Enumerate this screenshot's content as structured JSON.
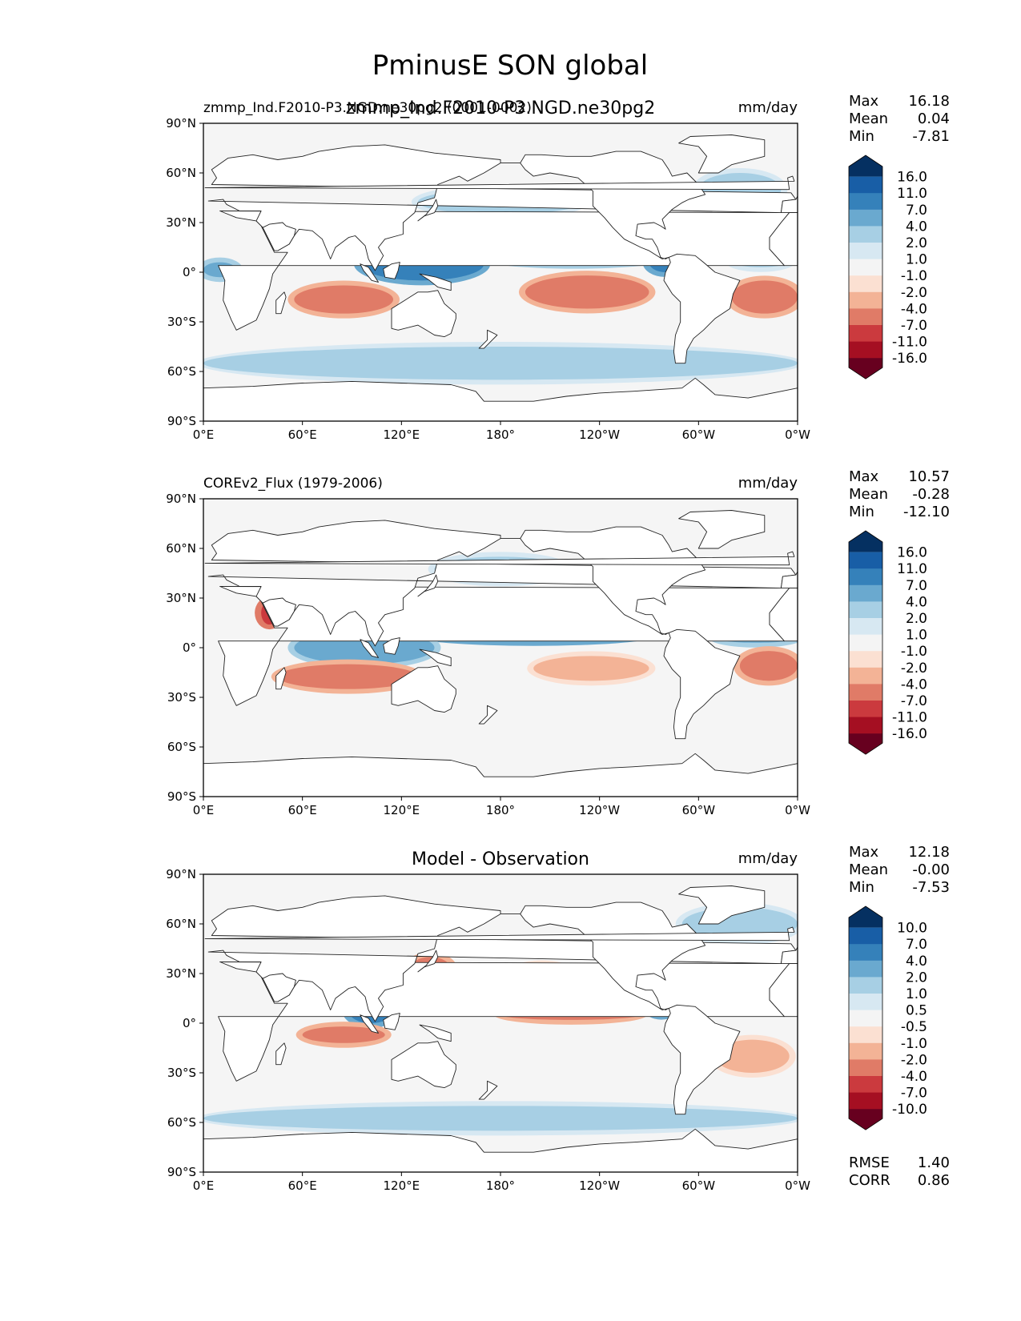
{
  "figure_title": "PminusE SON global",
  "palette": {
    "colorbar_13": [
      "#67001f",
      "#a50f22",
      "#cb3a3e",
      "#e07b67",
      "#f3b396",
      "#fbe0d2",
      "#f4f4f4",
      "#d7e8f2",
      "#a7cfe4",
      "#6aa9cf",
      "#3581ba",
      "#185ea6",
      "#053061"
    ],
    "land": "#ffffff",
    "ocean_default": "#f5f5f5",
    "frame": "#000000"
  },
  "x_ticks": [
    "0°E",
    "60°E",
    "120°E",
    "180°",
    "120°W",
    "60°W",
    "0°W"
  ],
  "y_ticks": [
    "90°N",
    "60°N",
    "30°N",
    "0°",
    "30°S",
    "60°S",
    "90°S"
  ],
  "panels": [
    {
      "id": "test",
      "left_title": "zmmp_Ind.F2010-P3.NGD.ne30pg2 (0001-0002)",
      "center_title": "zmmp_Ind.F2010-P3.NGD.ne30pg2",
      "units": "mm/day",
      "stats": [
        {
          "label": "Max",
          "value": "16.18"
        },
        {
          "label": "Mean",
          "value": "0.04"
        },
        {
          "label": "Min",
          "value": "-7.81"
        }
      ],
      "colorbar_labels": [
        "16.0",
        "11.0",
        "7.0",
        "4.0",
        "2.0",
        "1.0",
        "-1.0",
        "-2.0",
        "-4.0",
        "-7.0",
        "-11.0",
        "-16.0"
      ],
      "extra_stats": []
    },
    {
      "id": "reference",
      "left_title": "COREv2_Flux (1979-2006)",
      "center_title": "",
      "units": "mm/day",
      "stats": [
        {
          "label": "Max",
          "value": "10.57"
        },
        {
          "label": "Mean",
          "value": "-0.28"
        },
        {
          "label": "Min",
          "value": "-12.10"
        }
      ],
      "colorbar_labels": [
        "16.0",
        "11.0",
        "7.0",
        "4.0",
        "2.0",
        "1.0",
        "-1.0",
        "-2.0",
        "-4.0",
        "-7.0",
        "-11.0",
        "-16.0"
      ],
      "extra_stats": []
    },
    {
      "id": "difference",
      "left_title": "",
      "center_title": "Model - Observation",
      "units": "mm/day",
      "stats": [
        {
          "label": "Max",
          "value": "12.18"
        },
        {
          "label": "Mean",
          "value": "-0.00"
        },
        {
          "label": "Min",
          "value": "-7.53"
        }
      ],
      "colorbar_labels": [
        "10.0",
        "7.0",
        "4.0",
        "2.0",
        "1.0",
        "0.5",
        "-0.5",
        "-1.0",
        "-2.0",
        "-4.0",
        "-7.0",
        "-10.0"
      ],
      "extra_stats": [
        {
          "label": "RMSE",
          "value": "1.40"
        },
        {
          "label": "CORR",
          "value": "0.86"
        }
      ]
    }
  ],
  "chart_data": [
    {
      "type": "heatmap",
      "title": "zmmp_Ind.F2010-P3.NGD.ne30pg2",
      "units": "mm/day",
      "x_range_lon": [
        0,
        360
      ],
      "y_range_lat": [
        -90,
        90
      ],
      "levels": [
        -16,
        -11,
        -7,
        -4,
        -2,
        -1,
        1,
        2,
        4,
        7,
        11,
        16
      ],
      "features": [
        {
          "name": "ITCZ west Pacific / maritime continent",
          "lon": [
            95,
            170
          ],
          "lat": [
            -5,
            15
          ],
          "value": 9
        },
        {
          "name": "Pacific ITCZ",
          "lon": [
            170,
            280
          ],
          "lat": [
            5,
            12
          ],
          "value": 6
        },
        {
          "name": "Central America / Colombia",
          "lon": [
            270,
            290
          ],
          "lat": [
            0,
            12
          ],
          "value": 10
        },
        {
          "name": "Atlantic ITCZ",
          "lon": [
            320,
            355
          ],
          "lat": [
            3,
            10
          ],
          "value": 3
        },
        {
          "name": "Gulf of Guinea",
          "lon": [
            0,
            20
          ],
          "lat": [
            -3,
            6
          ],
          "value": 6
        },
        {
          "name": "North Pacific storm track",
          "lon": [
            130,
            230
          ],
          "lat": [
            35,
            50
          ],
          "value": 3
        },
        {
          "name": "North Atlantic storm track",
          "lon": [
            300,
            350
          ],
          "lat": [
            40,
            60
          ],
          "value": 2
        },
        {
          "name": "Southern Ocean",
          "lon": [
            0,
            360
          ],
          "lat": [
            -65,
            -45
          ],
          "value": 2
        },
        {
          "name": "SE Pacific subtropics",
          "lon": [
            195,
            270
          ],
          "lat": [
            -22,
            -2
          ],
          "value": -5
        },
        {
          "name": "South Indian Ocean",
          "lon": [
            55,
            115
          ],
          "lat": [
            -25,
            -8
          ],
          "value": -5
        },
        {
          "name": "NE Pacific subtropics",
          "lon": [
            180,
            235
          ],
          "lat": [
            15,
            30
          ],
          "value": -4
        },
        {
          "name": "South Atlantic",
          "lon": [
            320,
            360
          ],
          "lat": [
            -25,
            -5
          ],
          "value": -5
        },
        {
          "name": "North Atlantic subtropics",
          "lon": [
            280,
            340
          ],
          "lat": [
            15,
            30
          ],
          "value": -3
        },
        {
          "name": "Arabian Sea",
          "lon": [
            55,
            75
          ],
          "lat": [
            10,
            25
          ],
          "value": -3
        }
      ]
    },
    {
      "type": "heatmap",
      "title": "COREv2_Flux (1979-2006)",
      "units": "mm/day",
      "x_range_lon": [
        0,
        360
      ],
      "y_range_lat": [
        -90,
        90
      ],
      "levels": [
        -16,
        -11,
        -7,
        -4,
        -2,
        -1,
        1,
        2,
        4,
        7,
        11,
        16
      ],
      "features": [
        {
          "name": "Pacific ITCZ",
          "lon": [
            130,
            270
          ],
          "lat": [
            4,
            10
          ],
          "value": 7
        },
        {
          "name": "Indian Ocean / maritime continent",
          "lon": [
            55,
            140
          ],
          "lat": [
            -10,
            10
          ],
          "value": 5
        },
        {
          "name": "Atlantic ITCZ",
          "lon": [
            310,
            360
          ],
          "lat": [
            3,
            9
          ],
          "value": 4
        },
        {
          "name": "Kuroshio / NW Pacific",
          "lon": [
            140,
            220
          ],
          "lat": [
            40,
            55
          ],
          "value": 3
        },
        {
          "name": "South Indian Ocean",
          "lon": [
            45,
            130
          ],
          "lat": [
            -25,
            -10
          ],
          "value": -5
        },
        {
          "name": "SE Pacific",
          "lon": [
            200,
            270
          ],
          "lat": [
            -20,
            -5
          ],
          "value": -4
        },
        {
          "name": "South Atlantic",
          "lon": [
            325,
            360
          ],
          "lat": [
            -20,
            -2
          ],
          "value": -5
        },
        {
          "name": "North Pacific subtropics",
          "lon": [
            155,
            230
          ],
          "lat": [
            15,
            30
          ],
          "value": -3
        },
        {
          "name": "Red Sea",
          "lon": [
            35,
            45
          ],
          "lat": [
            14,
            28
          ],
          "value": -9
        },
        {
          "name": "North Atlantic subtropics",
          "lon": [
            280,
            345
          ],
          "lat": [
            15,
            30
          ],
          "value": -3
        }
      ]
    },
    {
      "type": "heatmap",
      "title": "Model - Observation",
      "units": "mm/day",
      "x_range_lon": [
        0,
        360
      ],
      "y_range_lat": [
        -90,
        90
      ],
      "levels": [
        -10,
        -7,
        -4,
        -2,
        -1,
        -0.5,
        0.5,
        1,
        2,
        4,
        7,
        10
      ],
      "features": [
        {
          "name": "West Pacific",
          "lon": [
            120,
            170
          ],
          "lat": [
            10,
            25
          ],
          "value": 5
        },
        {
          "name": "Bay of Bengal / Sumatra",
          "lon": [
            88,
            115
          ],
          "lat": [
            0,
            15
          ],
          "value": 5
        },
        {
          "name": "Southern Ocean",
          "lon": [
            0,
            360
          ],
          "lat": [
            -65,
            -50
          ],
          "value": 1.5
        },
        {
          "name": "Arctic / North Atlantic",
          "lon": [
            290,
            360
          ],
          "lat": [
            50,
            70
          ],
          "value": 1.5
        },
        {
          "name": "Central America",
          "lon": [
            270,
            285
          ],
          "lat": [
            5,
            15
          ],
          "value": 5
        },
        {
          "name": "East equatorial Pacific",
          "lon": [
            180,
            265
          ],
          "lat": [
            2,
            8
          ],
          "value": -3
        },
        {
          "name": "Indian Ocean south of equator",
          "lon": [
            60,
            110
          ],
          "lat": [
            -12,
            -2
          ],
          "value": -4
        },
        {
          "name": "Sea of Japan / Kuroshio",
          "lon": [
            125,
            150
          ],
          "lat": [
            25,
            40
          ],
          "value": -3
        },
        {
          "name": "North Pacific",
          "lon": [
            185,
            225
          ],
          "lat": [
            20,
            35
          ],
          "value": -2
        },
        {
          "name": "South Atlantic",
          "lon": [
            310,
            355
          ],
          "lat": [
            -30,
            -10
          ],
          "value": -2
        },
        {
          "name": "Caribbean",
          "lon": [
            285,
            300
          ],
          "lat": [
            13,
            20
          ],
          "value": -3
        }
      ]
    }
  ]
}
